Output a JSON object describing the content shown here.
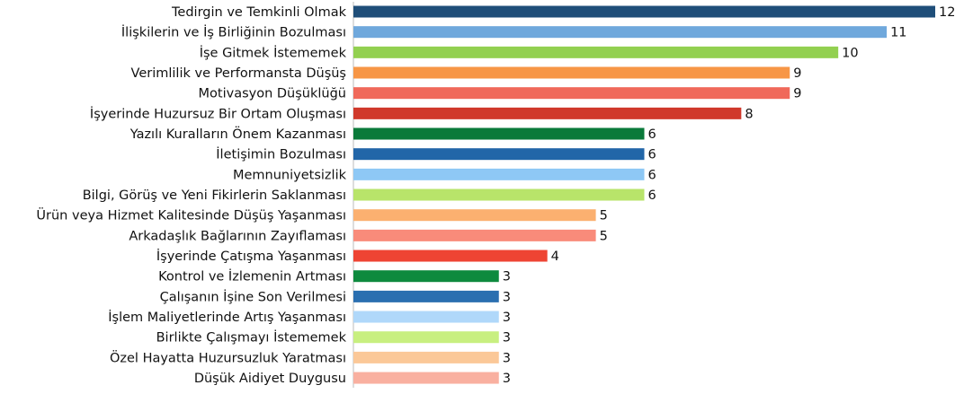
{
  "chart_data": {
    "type": "barh",
    "categories": [
      "Tedirgin ve Temkinli Olmak",
      "İlişkilerin ve İş Birliğinin Bozulması",
      "İşe Gitmek İstememek",
      "Verimlilik ve Performansta Düşüş",
      "Motivasyon Düşüklüğü",
      "İşyerinde Huzursuz Bir Ortam Oluşması",
      "Yazılı Kuralların Önem Kazanması",
      "İletişimin Bozulması",
      "Memnuniyetsizlik",
      "Bilgi, Görüş ve Yeni Fikirlerin Saklanması",
      "Ürün veya Hizmet Kalitesinde Düşüş Yaşanması",
      "Arkadaşlık Bağlarının Zayıflaması",
      "İşyerinde Çatışma Yaşanması",
      "Kontrol ve İzlemenin Artması",
      "Çalışanın İşine Son Verilmesi",
      "İşlem Maliyetlerinde Artış Yaşanması",
      "Birlikte Çalışmayı İstememek",
      "Özel Hayatta Huzursuzluk Yaratması",
      "Düşük Aidiyet Duygusu"
    ],
    "values": [
      12,
      11,
      10,
      9,
      9,
      8,
      6,
      6,
      6,
      6,
      5,
      5,
      4,
      3,
      3,
      3,
      3,
      3,
      3
    ],
    "colors": [
      "#1f4e79",
      "#6fa8dc",
      "#92d050",
      "#f79646",
      "#f0695a",
      "#d0392b",
      "#0a7a3a",
      "#2266a8",
      "#8ec8f5",
      "#b8e46a",
      "#fbb070",
      "#f98b7a",
      "#ee4433",
      "#0e8a3e",
      "#2a6fb0",
      "#b0d8fa",
      "#c8ef80",
      "#fbc898",
      "#f9b0a0"
    ],
    "xlim": [
      0,
      12
    ]
  }
}
